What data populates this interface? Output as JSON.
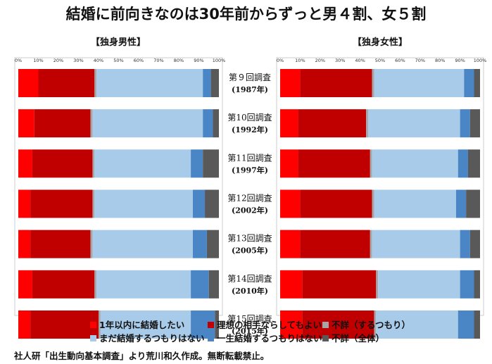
{
  "title": "結婚に前向きなのは30年前からずっと男４割、女５割",
  "source_note": "社人研「出生動向基本調査」より荒川和久作成。無断転載禁止。",
  "chart_data": [
    {
      "type": "bar",
      "stacked": "percent",
      "orientation": "horizontal",
      "title": "【独身男性】",
      "categories": [
        "第９回調査\n(1987年)",
        "第10回調査\n(1992年)",
        "第11回調査\n(1997年)",
        "第12回調査\n(2002年)",
        "第13回調査\n(2005年)",
        "第14回調査\n(2010年)",
        "第15回調査\n(2015年)"
      ],
      "xlim": [
        0,
        100
      ],
      "x_ticks": [
        "0%",
        "10%",
        "20%",
        "30%",
        "40%",
        "50%",
        "60%",
        "70%",
        "80%",
        "90%",
        "100%"
      ],
      "grid": false,
      "series": [
        {
          "name": "1年以内に結婚したい",
          "color": "#ff0000",
          "values": [
            10,
            8,
            7,
            6,
            6,
            7,
            6
          ]
        },
        {
          "name": "理想の相手ならしてもよい",
          "color": "#c00000",
          "values": [
            28,
            28,
            30,
            31,
            30,
            31,
            34
          ]
        },
        {
          "name": "不詳（するつもり）",
          "color": "#a6a6a6",
          "values": [
            1,
            1,
            1,
            1,
            1,
            1,
            1
          ]
        },
        {
          "name": "まだ結婚するつもりはない",
          "color": "#a9cbea",
          "values": [
            53,
            55,
            48,
            49,
            50,
            47,
            45
          ]
        },
        {
          "name": "一生結婚するつもりはない",
          "color": "#4a86c5",
          "values": [
            4,
            5,
            6,
            6,
            7,
            9,
            12
          ]
        },
        {
          "name": "不詳（全体）",
          "color": "#595959",
          "values": [
            4,
            3,
            8,
            7,
            6,
            5,
            2
          ]
        }
      ]
    },
    {
      "type": "bar",
      "stacked": "percent",
      "orientation": "horizontal",
      "title": "【独身女性】",
      "categories": [
        "第９回調査\n(1987年)",
        "第10回調査\n(1992年)",
        "第11回調査\n(1997年)",
        "第12回調査\n(2002年)",
        "第13回調査\n(2005年)",
        "第14回調査\n(2010年)",
        "第15回調査\n(2015年)"
      ],
      "xlim": [
        0,
        100
      ],
      "x_ticks": [
        "0%",
        "10%",
        "20%",
        "30%",
        "40%",
        "50%",
        "60%",
        "70%",
        "80%",
        "90%",
        "100%"
      ],
      "grid": false,
      "series": [
        {
          "name": "1年以内に結婚したい",
          "color": "#ff0000",
          "values": [
            10,
            9,
            9,
            10,
            10,
            11,
            11
          ]
        },
        {
          "name": "理想の相手ならしてもよい",
          "color": "#c00000",
          "values": [
            36,
            34,
            36,
            36,
            35,
            37,
            36
          ]
        },
        {
          "name": "不詳（するつもり）",
          "color": "#a6a6a6",
          "values": [
            1,
            1,
            1,
            1,
            1,
            1,
            1
          ]
        },
        {
          "name": "まだ結婚するつもりはない",
          "color": "#a9cbea",
          "values": [
            45,
            46,
            43,
            41,
            44,
            41,
            41
          ]
        },
        {
          "name": "一生結婚するつもりはない",
          "color": "#4a86c5",
          "values": [
            5,
            5,
            5,
            5,
            5,
            7,
            8
          ]
        },
        {
          "name": "不詳（全体）",
          "color": "#595959",
          "values": [
            3,
            5,
            6,
            7,
            5,
            3,
            3
          ]
        }
      ]
    }
  ],
  "legend": [
    {
      "label": "1年以内に結婚したい",
      "color": "#ff0000"
    },
    {
      "label": "理想の相手ならしてもよい",
      "color": "#c00000"
    },
    {
      "label": "不詳（するつもり）",
      "color": "#a6a6a6"
    },
    {
      "label": "まだ結婚するつもりはない",
      "color": "#a9cbea"
    },
    {
      "label": "一生結婚するつもりはない",
      "color": "#4a86c5"
    },
    {
      "label": "不詳（全体）",
      "color": "#595959"
    }
  ],
  "legend_placement": "bottom"
}
